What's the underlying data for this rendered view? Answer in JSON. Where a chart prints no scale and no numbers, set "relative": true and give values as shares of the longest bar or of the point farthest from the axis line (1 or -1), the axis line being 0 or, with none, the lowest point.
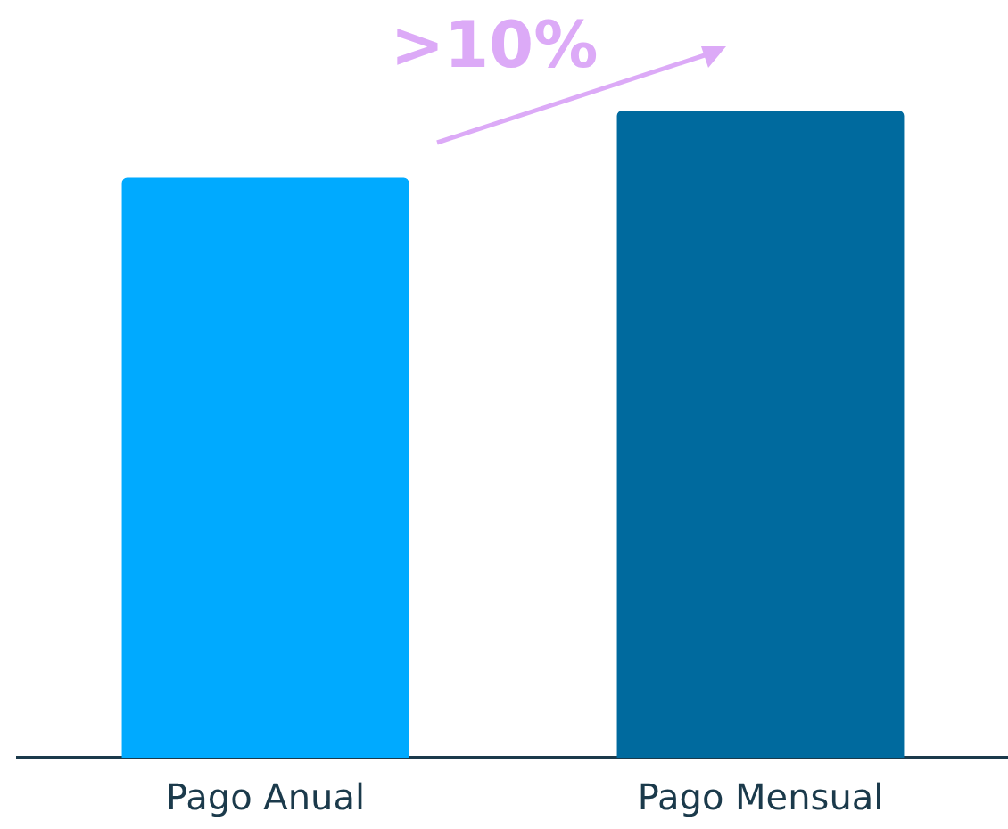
{
  "chart_data": {
    "type": "bar",
    "relative": true,
    "categories": [
      "Pago Anual",
      "Pago Mensual"
    ],
    "values": [
      0.896,
      1
    ],
    "colors": [
      "#00aaff",
      "#006a9e"
    ],
    "annotations": [
      ">10%"
    ]
  }
}
